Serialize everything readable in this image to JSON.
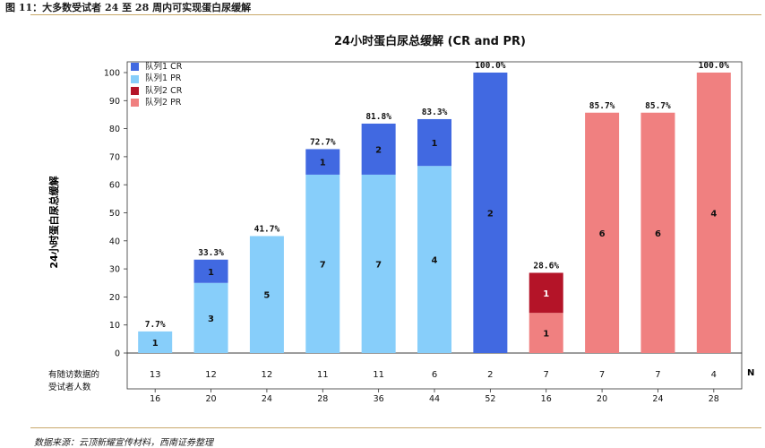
{
  "figure_caption": "图 11：大多数受试者 24 至 28 周内可实现蛋白尿缓解",
  "source_note": "数据来源：云顶新耀宣传材料，西南证券整理",
  "colors": {
    "cohort1_cr": "#4169e1",
    "cohort1_pr": "#87cefa",
    "cohort2_cr": "#b41428",
    "cohort2_pr": "#f08080",
    "rule": "#c9a86a"
  },
  "chart_data": {
    "type": "bar",
    "stacked": true,
    "title": "24小时蛋白尿总缓解 (CR and PR)",
    "ylabel": "24小时蛋白尿总缓解",
    "xlabel": "",
    "ylim": [
      0,
      100
    ],
    "yticks": [
      0,
      10,
      20,
      30,
      40,
      50,
      60,
      70,
      80,
      90,
      100
    ],
    "legend_position": "top-left",
    "legend": [
      {
        "key": "cohort1_cr",
        "label": "队列1 CR"
      },
      {
        "key": "cohort1_pr",
        "label": "队列1 PR"
      },
      {
        "key": "cohort2_cr",
        "label": "队列2 CR"
      },
      {
        "key": "cohort2_pr",
        "label": "队列2 PR"
      }
    ],
    "categories": [
      "16",
      "20",
      "24",
      "28",
      "36",
      "44",
      "52",
      "16",
      "20",
      "24",
      "28"
    ],
    "n_row_label": "有随访数据的受试者人数",
    "n_axis_label": "N",
    "n_values": [
      "13",
      "12",
      "12",
      "11",
      "11",
      "6",
      "2",
      "7",
      "7",
      "7",
      "4"
    ],
    "total_labels": [
      "7.7%",
      "33.3%",
      "41.7%",
      "72.7%",
      "81.8%",
      "83.3%",
      "100.0%",
      "28.6%",
      "85.7%",
      "85.7%",
      "100.0%"
    ],
    "series": [
      {
        "name": "PR",
        "values": [
          7.7,
          25.0,
          41.7,
          63.6,
          63.6,
          66.7,
          0,
          14.3,
          85.7,
          85.7,
          100.0
        ],
        "counts": [
          "1",
          "3",
          "5",
          "7",
          "7",
          "4",
          "",
          "1",
          "6",
          "6",
          "4"
        ]
      },
      {
        "name": "CR",
        "values": [
          0,
          8.3,
          0,
          9.1,
          18.2,
          16.7,
          100.0,
          14.3,
          0,
          0,
          0
        ],
        "counts": [
          "",
          "1",
          "",
          "1",
          "2",
          "1",
          "2",
          "1",
          "",
          "",
          ""
        ]
      }
    ],
    "cohort": [
      1,
      1,
      1,
      1,
      1,
      1,
      1,
      2,
      2,
      2,
      2
    ]
  }
}
